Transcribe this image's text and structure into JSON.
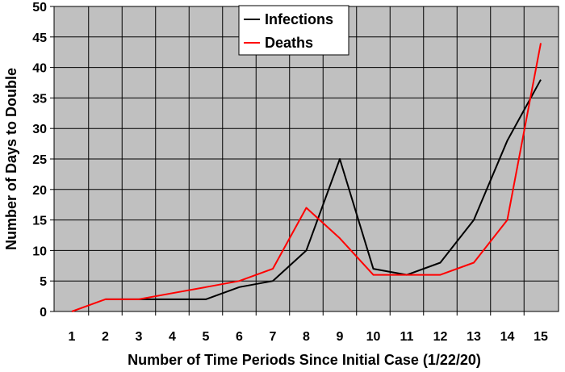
{
  "chart_data": {
    "type": "line",
    "xlabel": "Number of Time Periods Since Initial Case (1/22/20)",
    "ylabel": "Number of Days to Double",
    "ylim": [
      0,
      50
    ],
    "yticks": [
      0,
      5,
      10,
      15,
      20,
      25,
      30,
      35,
      40,
      45,
      50
    ],
    "categories": [
      "1",
      "2",
      "3",
      "4",
      "5",
      "6",
      "7",
      "8",
      "9",
      "10",
      "11",
      "12",
      "13",
      "14",
      "15"
    ],
    "grid": true,
    "legend_position": "top-center",
    "plot_background": "#c0c0c0",
    "series": [
      {
        "name": "Infections",
        "color": "#000000",
        "values": [
          null,
          2,
          2,
          2,
          2,
          4,
          5,
          10,
          25,
          7,
          6,
          8,
          15,
          28,
          38
        ]
      },
      {
        "name": "Deaths",
        "color": "#ff0000",
        "values": [
          0,
          2,
          2,
          3,
          4,
          5,
          7,
          17,
          12,
          6,
          6,
          6,
          8,
          15,
          44
        ]
      }
    ]
  }
}
